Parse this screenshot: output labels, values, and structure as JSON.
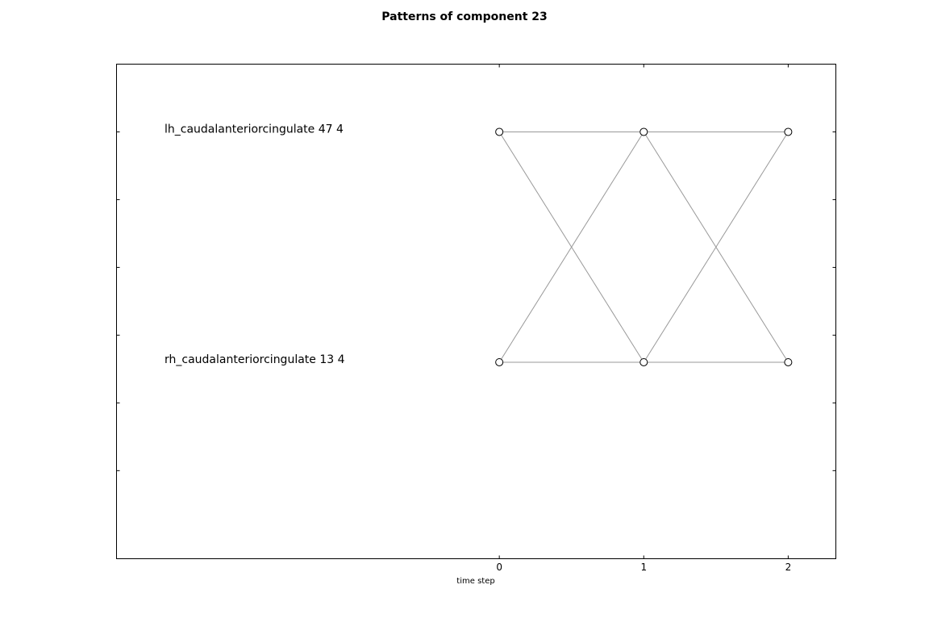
{
  "chart_data": {
    "type": "line",
    "title": "Patterns of component 23",
    "xlabel": "time step",
    "ylabel": "",
    "x_ticks": [
      "0",
      "1",
      "2"
    ],
    "rows": [
      {
        "label": "lh_caudalanteriorcingulate 47 4",
        "row": 0
      },
      {
        "label": "rh_caudalanteriorcingulate 13 4",
        "row": 1
      }
    ],
    "nodes": [
      {
        "time": 0,
        "row": 0
      },
      {
        "time": 1,
        "row": 0
      },
      {
        "time": 2,
        "row": 0
      },
      {
        "time": 0,
        "row": 1
      },
      {
        "time": 1,
        "row": 1
      },
      {
        "time": 2,
        "row": 1
      }
    ],
    "edges": [
      {
        "from": [
          0,
          0
        ],
        "to": [
          1,
          0
        ]
      },
      {
        "from": [
          0,
          0
        ],
        "to": [
          1,
          1
        ]
      },
      {
        "from": [
          0,
          1
        ],
        "to": [
          1,
          0
        ]
      },
      {
        "from": [
          0,
          1
        ],
        "to": [
          1,
          1
        ]
      },
      {
        "from": [
          1,
          0
        ],
        "to": [
          2,
          0
        ]
      },
      {
        "from": [
          1,
          0
        ],
        "to": [
          2,
          1
        ]
      },
      {
        "from": [
          1,
          1
        ],
        "to": [
          2,
          0
        ]
      },
      {
        "from": [
          1,
          1
        ],
        "to": [
          2,
          1
        ]
      }
    ],
    "xlim": [
      -2.65,
      2.33
    ],
    "ylim": [
      -1.3,
      6.0
    ],
    "grid": false,
    "colors": {
      "edge": "#999999",
      "node_fill": "#ffffff",
      "node_stroke": "#000000",
      "frame": "#000000"
    }
  }
}
